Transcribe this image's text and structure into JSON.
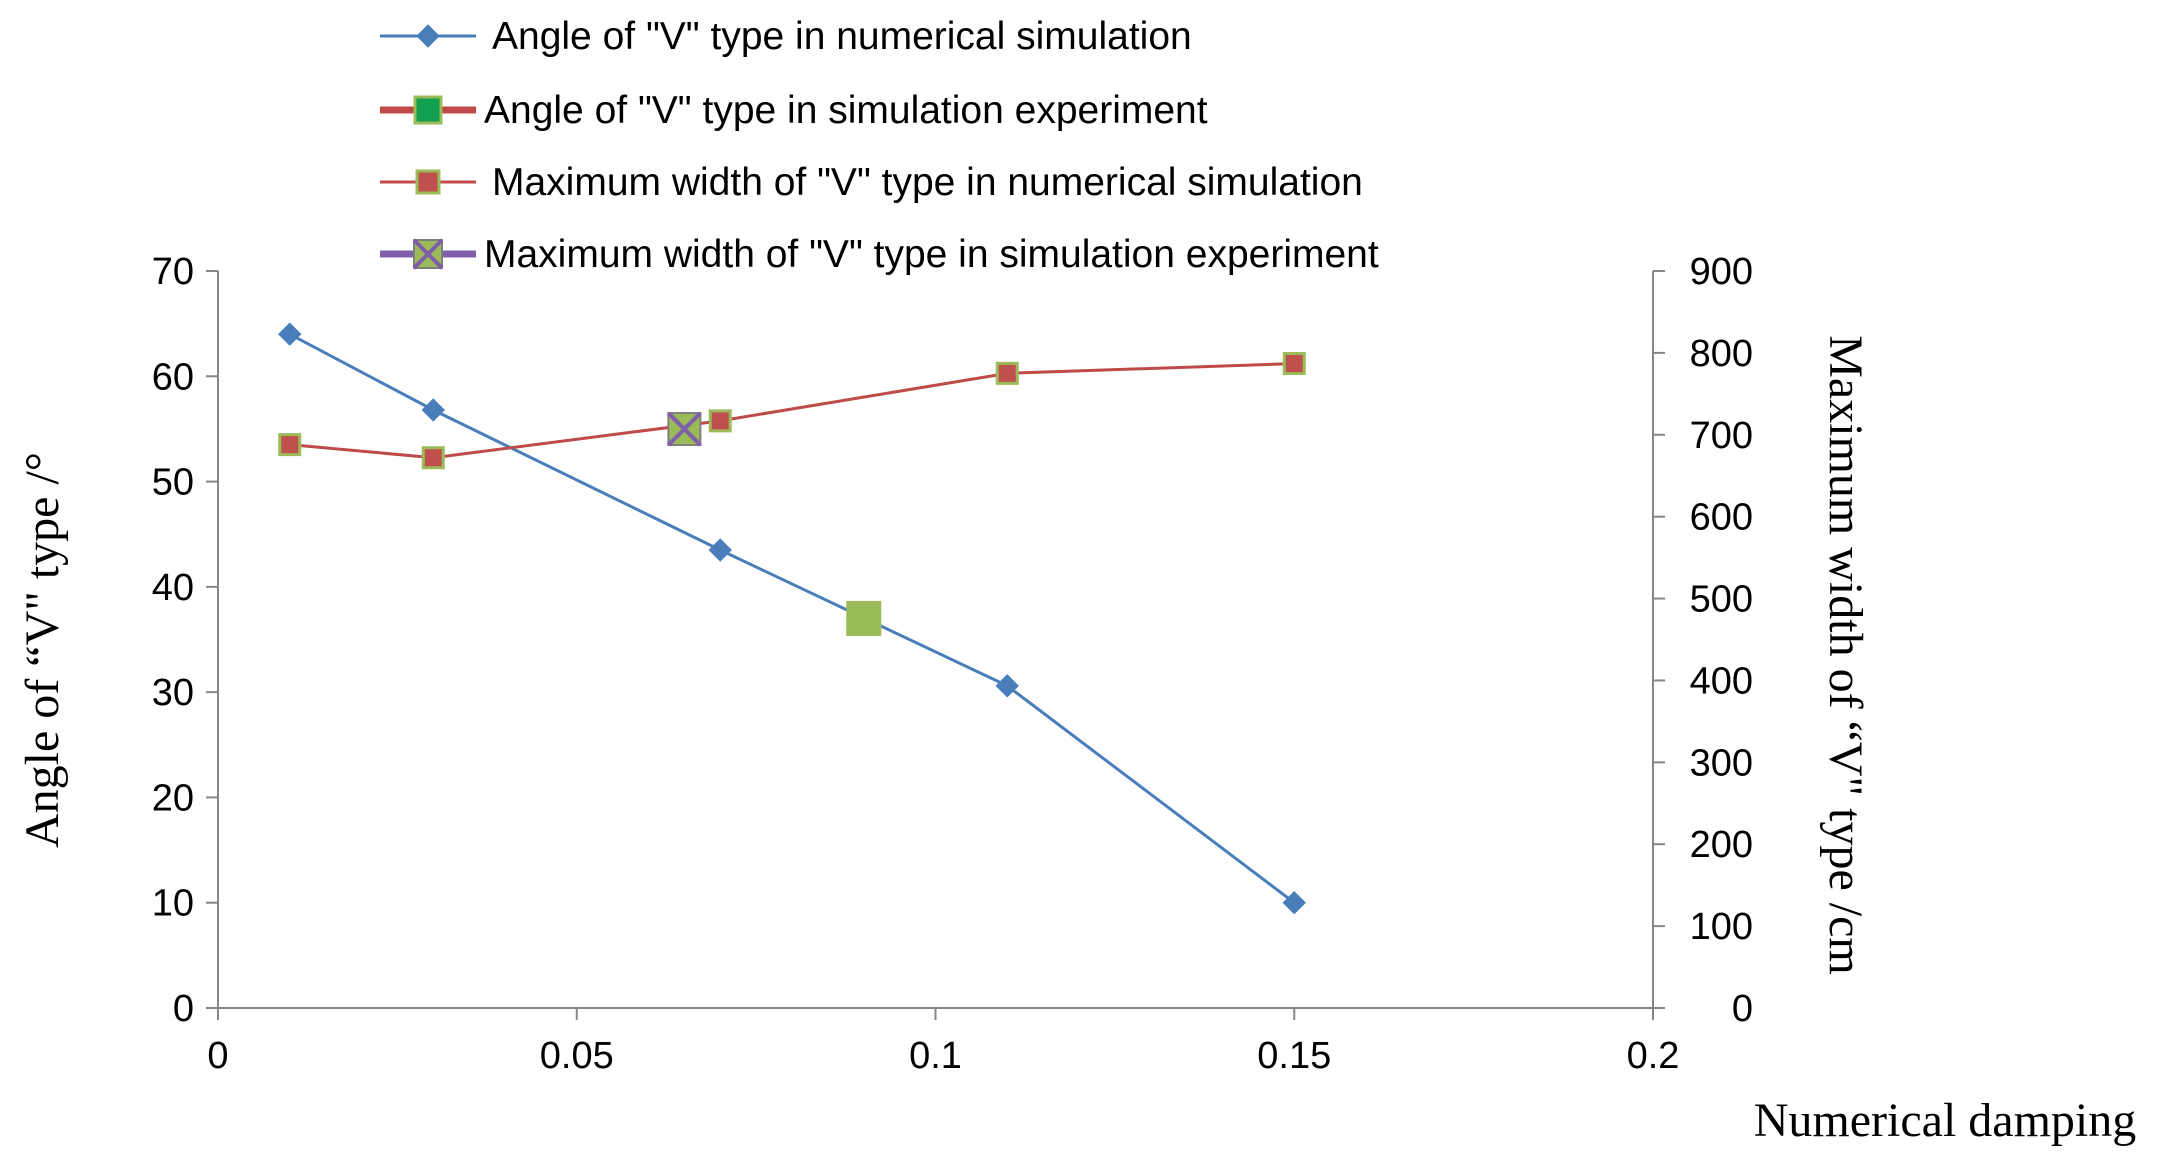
{
  "chart_data": {
    "type": "line",
    "xlabel": "Numerical damping",
    "ylabel_left": "Angle of  “V\" type /°",
    "ylabel_right": "Maximum width of “V\" type /cm",
    "xlim": [
      0,
      0.2
    ],
    "xticks": [
      "0",
      "0.05",
      "0.1",
      "0.15",
      "0.2"
    ],
    "ylim_left": [
      0,
      70
    ],
    "yticks_left": [
      "0",
      "10",
      "20",
      "30",
      "40",
      "50",
      "60",
      "70"
    ],
    "ylim_right": [
      0,
      900
    ],
    "yticks_right": [
      "0",
      "100",
      "200",
      "300",
      "400",
      "500",
      "600",
      "700",
      "800",
      "900"
    ],
    "grid": false,
    "legend_position": "top",
    "series": [
      {
        "name": "Angle of \"V\"  type in numerical simulation",
        "axis": "left",
        "color": "#4a7ebb",
        "marker": "diamond",
        "points": [
          [
            0.01,
            64
          ],
          [
            0.03,
            56.8
          ],
          [
            0.07,
            43.5
          ],
          [
            0.11,
            30.6
          ],
          [
            0.15,
            10
          ]
        ]
      },
      {
        "name": "Angle of \"V\" type in simulation experiment",
        "axis": "left",
        "color": "#be4b48",
        "marker": "square",
        "marker_fill": "#9bbb59",
        "points": [
          [
            0.09,
            37
          ]
        ]
      },
      {
        "name": "Maximum width  of  \"V\"  type in numerical simulation",
        "axis": "right",
        "color": "#be4b48",
        "marker": "square",
        "marker_fill": "#c0504d",
        "points": [
          [
            0.01,
            688
          ],
          [
            0.03,
            672
          ],
          [
            0.07,
            717
          ],
          [
            0.11,
            775
          ],
          [
            0.15,
            787
          ]
        ]
      },
      {
        "name": "Maximum width  of \"V\" type in simulation experiment",
        "axis": "right",
        "color": "#7f5fa8",
        "marker": "x-square",
        "marker_fill": "#9bbb59",
        "points": [
          [
            0.065,
            707
          ]
        ]
      }
    ]
  }
}
